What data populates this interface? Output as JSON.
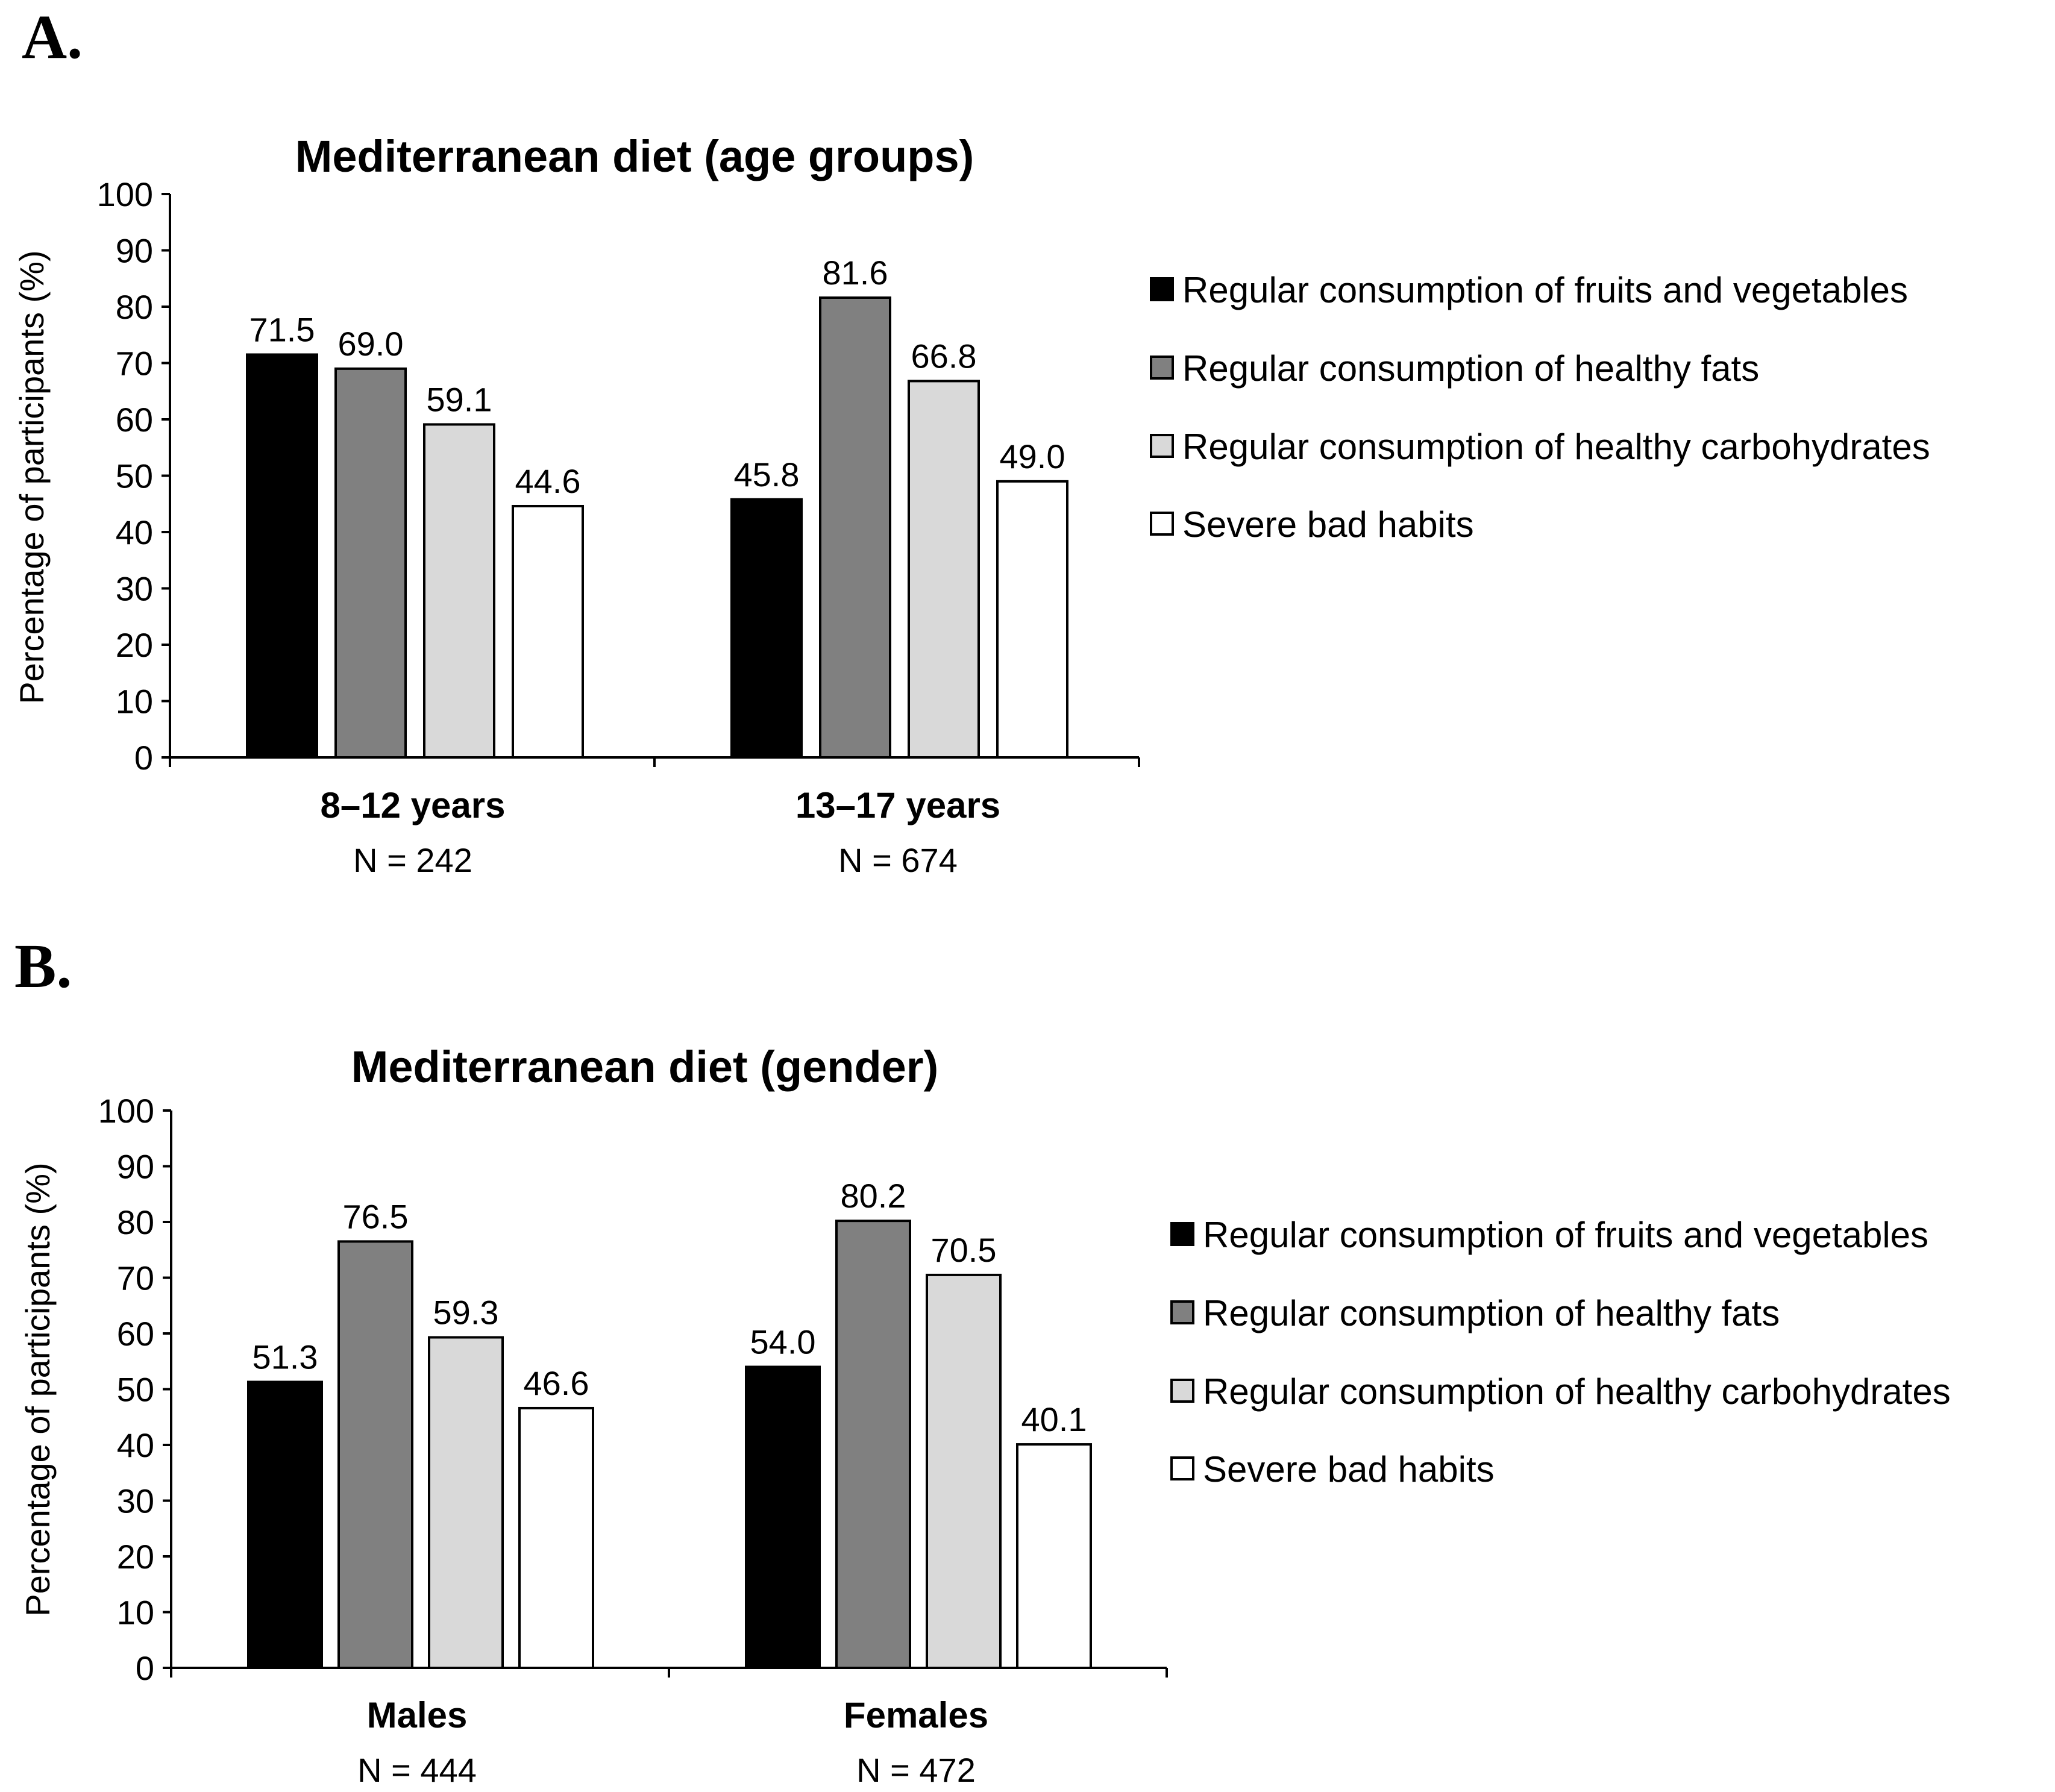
{
  "chart_data": [
    {
      "panel": "A.",
      "type": "bar",
      "title": "Mediterranean diet (age groups)",
      "xlabel": "",
      "ylabel": "Percentage of participants (%)",
      "ylim": [
        0,
        100
      ],
      "yticks": [
        "0",
        "10",
        "20",
        "30",
        "40",
        "50",
        "60",
        "70",
        "80",
        "90",
        "100"
      ],
      "categories": [
        "8–12 years",
        "13–17 years"
      ],
      "category_sublabels": [
        "N = 242",
        "N = 674"
      ],
      "series": [
        {
          "name": "Regular consumption of fruits and vegetables",
          "color": "#000000",
          "values": [
            71.5,
            45.8
          ],
          "labels": [
            "71.5",
            "45.8"
          ]
        },
        {
          "name": "Regular consumption of healthy fats",
          "color": "#808080",
          "values": [
            69.0,
            81.6
          ],
          "labels": [
            "69.0",
            "81.6"
          ]
        },
        {
          "name": "Regular consumption of healthy carbohydrates",
          "color": "#d9d9d9",
          "values": [
            59.1,
            66.8
          ],
          "labels": [
            "59.1",
            "66.8"
          ]
        },
        {
          "name": "Severe bad habits",
          "color": "#ffffff",
          "values": [
            44.6,
            49.0
          ],
          "labels": [
            "44.6",
            "49.0"
          ]
        }
      ],
      "legend_position": "right"
    },
    {
      "panel": "B.",
      "type": "bar",
      "title": "Mediterranean diet (gender)",
      "xlabel": "",
      "ylabel": "Percentage of participants (%)",
      "ylim": [
        0,
        100
      ],
      "yticks": [
        "0",
        "10",
        "20",
        "30",
        "40",
        "50",
        "60",
        "70",
        "80",
        "90",
        "100"
      ],
      "categories": [
        "Males",
        "Females"
      ],
      "category_sublabels": [
        "N = 444",
        "N = 472"
      ],
      "series": [
        {
          "name": "Regular consumption of fruits and vegetables",
          "color": "#000000",
          "values": [
            51.3,
            54.0
          ],
          "labels": [
            "51.3",
            "54.0"
          ]
        },
        {
          "name": "Regular consumption of healthy fats",
          "color": "#808080",
          "values": [
            76.5,
            80.2
          ],
          "labels": [
            "76.5",
            "80.2"
          ]
        },
        {
          "name": "Regular consumption of healthy carbohydrates",
          "color": "#d9d9d9",
          "values": [
            59.3,
            70.5
          ],
          "labels": [
            "59.3",
            "70.5"
          ]
        },
        {
          "name": "Severe bad habits",
          "color": "#ffffff",
          "values": [
            46.6,
            40.1
          ],
          "labels": [
            "46.6",
            "40.1"
          ]
        }
      ],
      "legend_position": "right"
    }
  ]
}
